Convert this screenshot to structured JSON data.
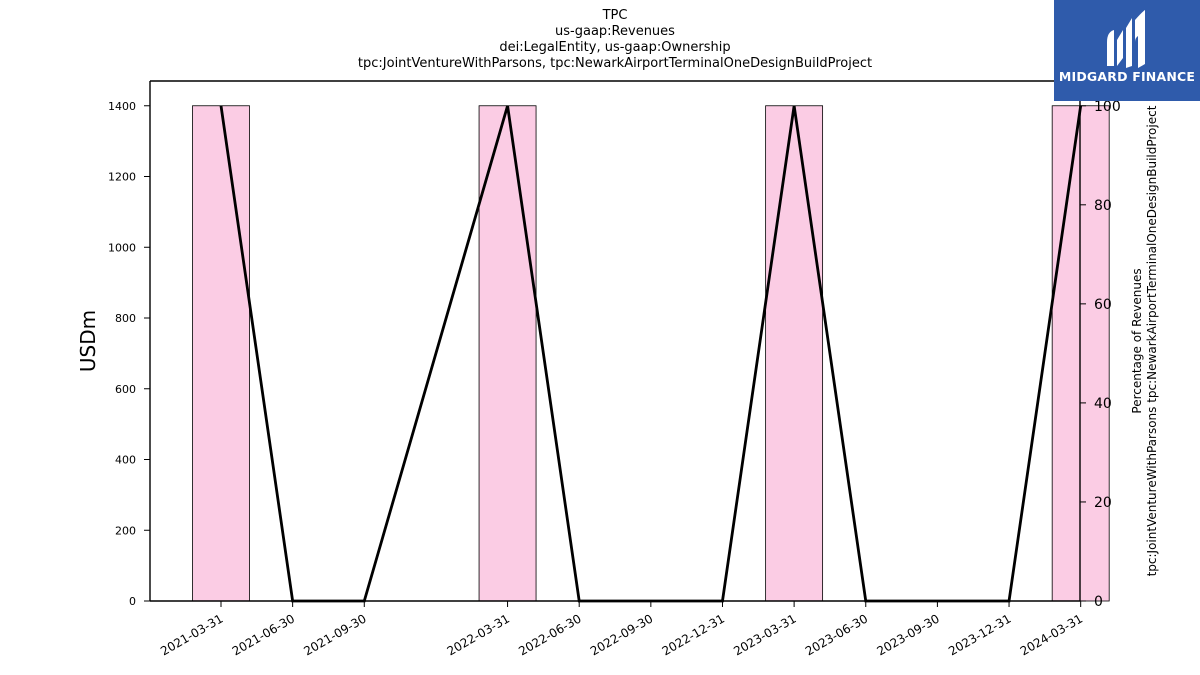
{
  "titles": [
    "TPC",
    "us-gaap:Revenues",
    "dei:LegalEntity, us-gaap:Ownership",
    "tpc:JointVentureWithParsons, tpc:NewarkAirportTerminalOneDesignBuildProject"
  ],
  "logo": {
    "text": "MIDGARD FINANCE",
    "background": "#2f5bab"
  },
  "chart_data": {
    "type": "bar",
    "categories": [
      "2021-03-31",
      "2021-06-30",
      "2021-09-30",
      "2022-03-31",
      "2022-06-30",
      "2022-09-30",
      "2022-12-31",
      "2023-03-31",
      "2023-06-30",
      "2023-09-30",
      "2023-12-31",
      "2024-03-31"
    ],
    "bar_series": {
      "values": [
        1400,
        0,
        0,
        1400,
        0,
        0,
        0,
        1400,
        0,
        0,
        0,
        1400
      ],
      "color": "#fbcce4",
      "edge_color": "#000000"
    },
    "line_series": {
      "values": [
        100,
        0,
        0,
        100,
        0,
        0,
        0,
        100,
        0,
        0,
        0,
        100
      ],
      "color": "#000000"
    },
    "ylabel": "USDm",
    "y2label_lines": [
      "Percentage of Revenues",
      "tpc:JointVentureWithParsons tpc:NewarkAirportTerminalOneDesignBuildProject"
    ],
    "ylim": [
      0,
      1470
    ],
    "y2lim": [
      0,
      105
    ],
    "yticks": [
      0,
      200,
      400,
      600,
      800,
      1000,
      1200,
      1400
    ],
    "y2ticks": [
      0,
      20,
      40,
      60,
      80,
      100
    ],
    "grid": false
  }
}
